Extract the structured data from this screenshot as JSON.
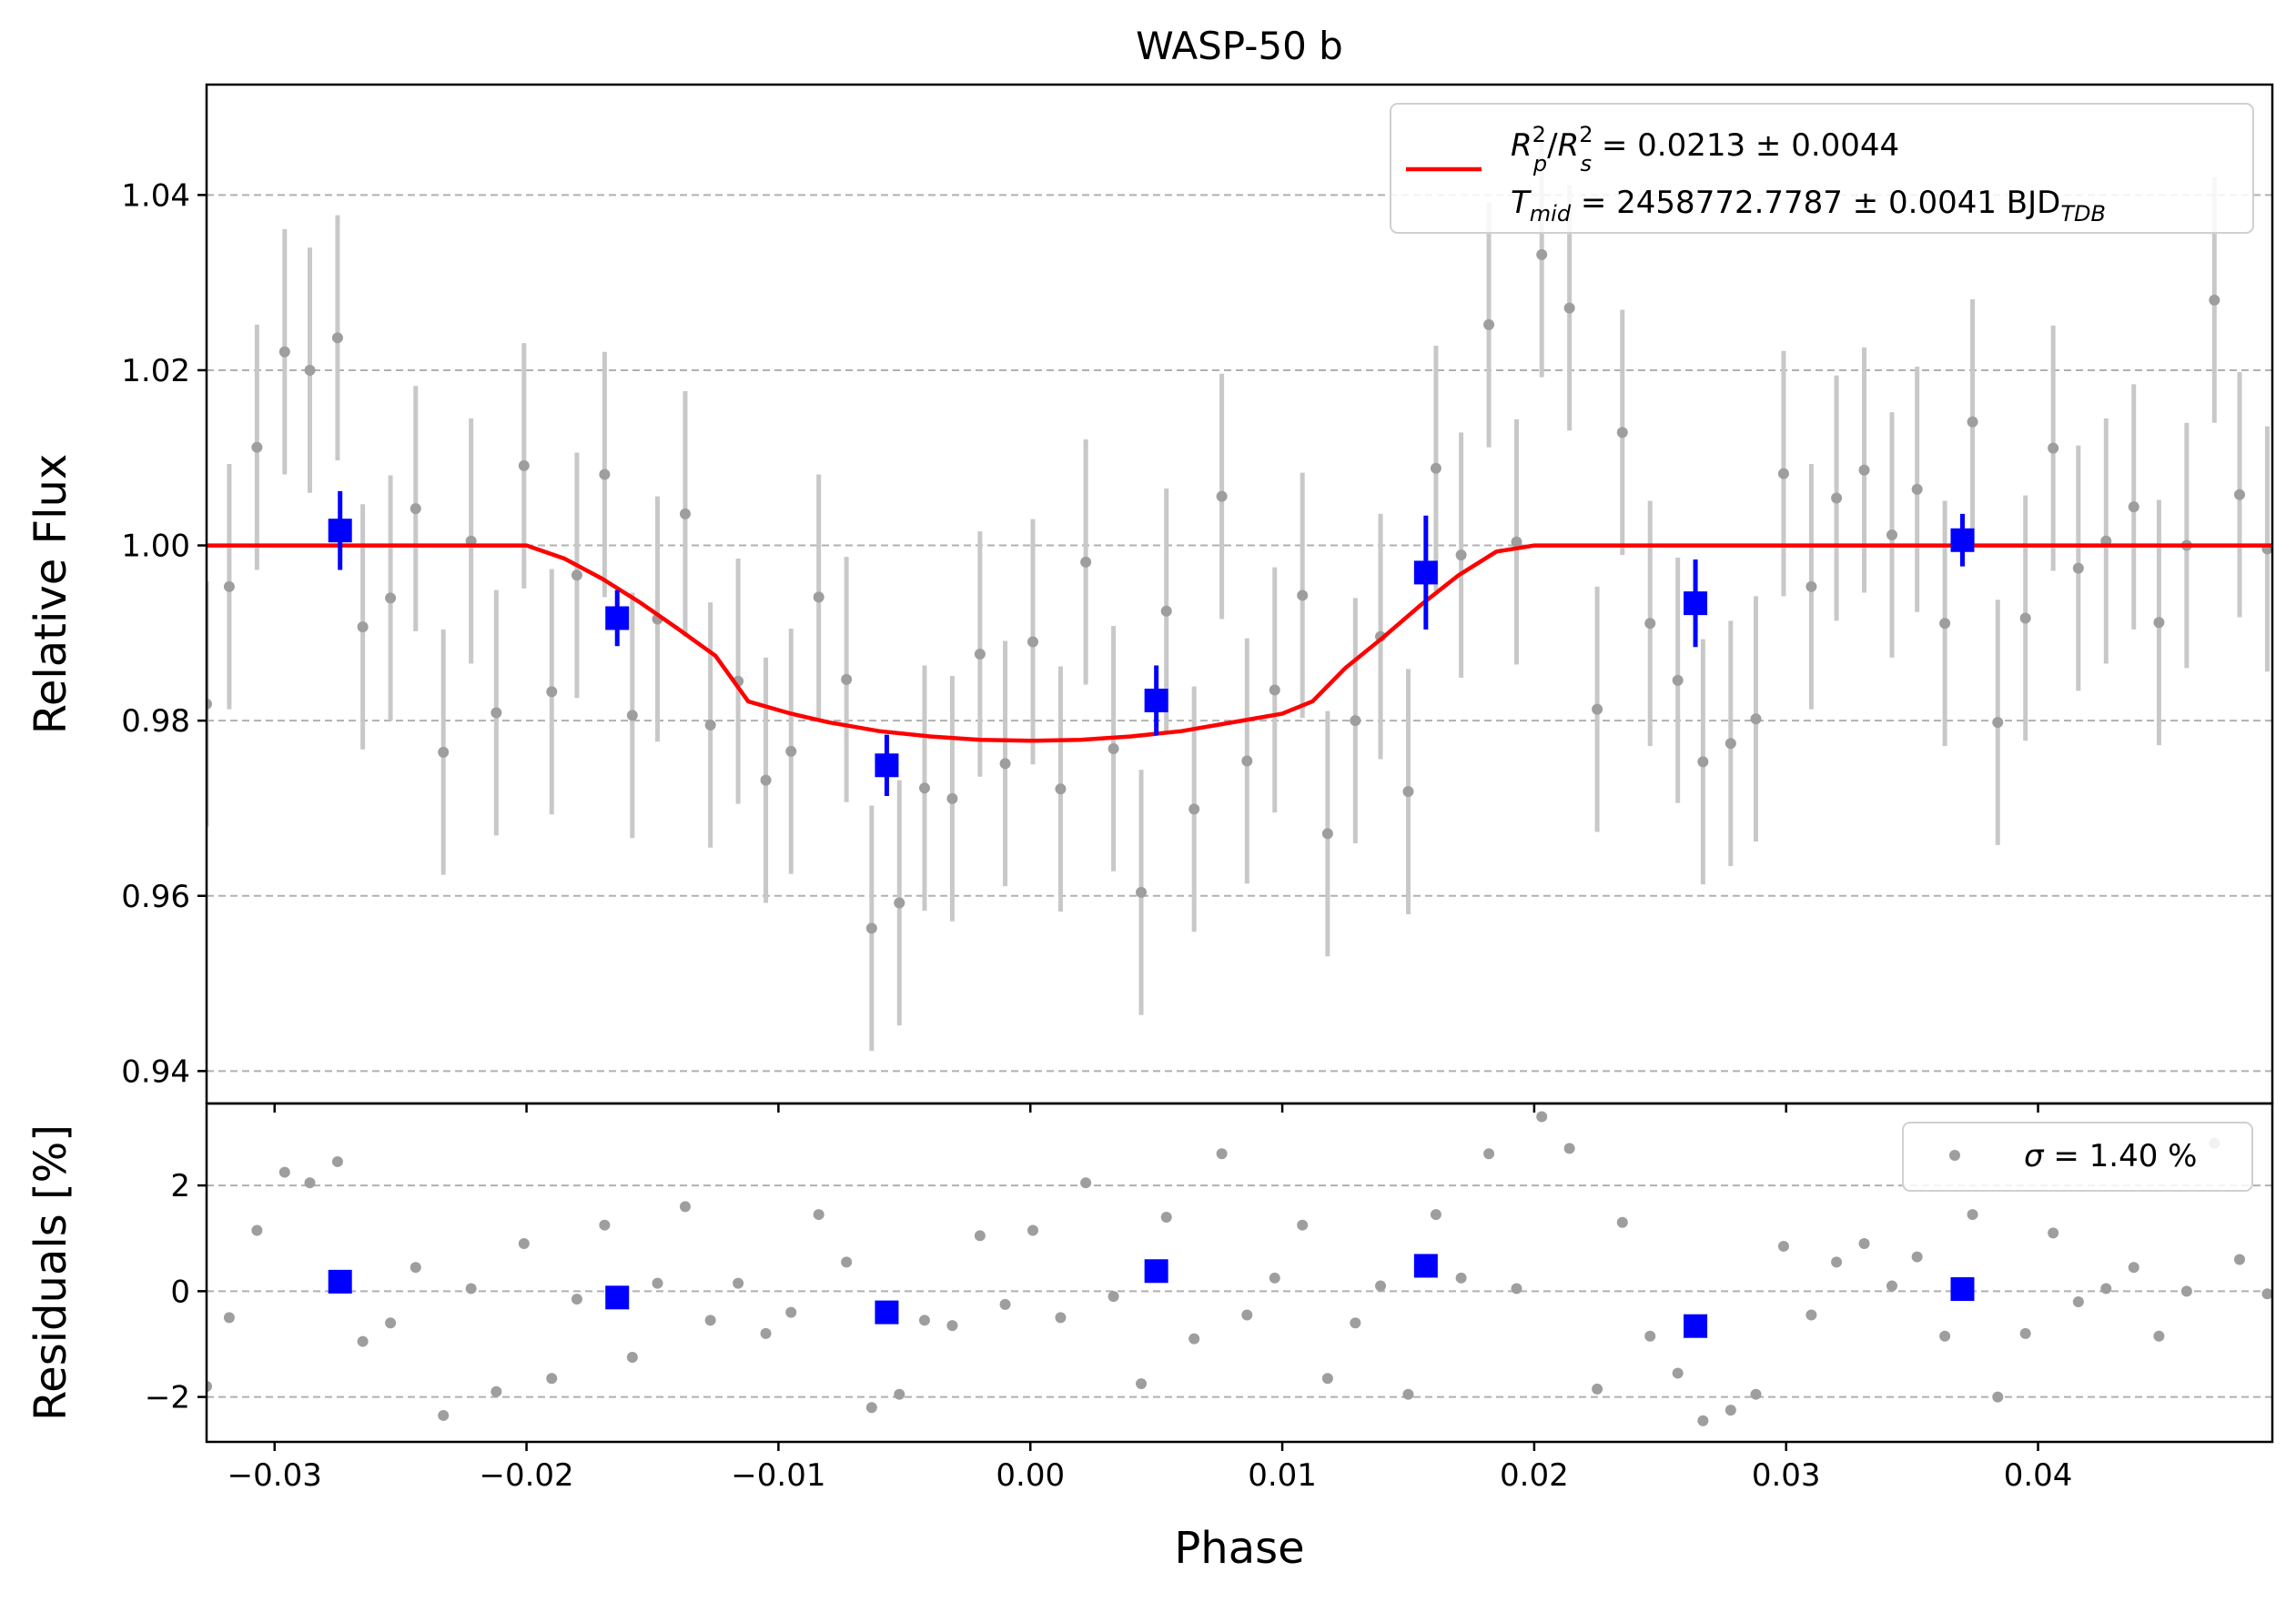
{
  "chart_data": {
    "type": "scatter",
    "title": "WASP-50 b",
    "xlabel": "Phase",
    "xlim": [
      -0.0327,
      0.0493
    ],
    "xticks": [
      -0.03,
      -0.02,
      -0.01,
      0.0,
      0.01,
      0.02,
      0.03,
      0.04
    ],
    "xtick_labels": [
      "−0.03",
      "−0.02",
      "−0.01",
      "0.00",
      "0.01",
      "0.02",
      "0.03",
      "0.04"
    ],
    "grid": "horizontal dashed",
    "colors": {
      "raw": "#9e9e9e",
      "errorbar": "#c8c8c8",
      "binned": "#0000ff",
      "model": "#ff0000"
    },
    "panels": [
      {
        "name": "flux",
        "ylabel": "Relative Flux",
        "ylim": [
          0.9363,
          1.0526
        ],
        "yticks": [
          0.94,
          0.96,
          0.98,
          1.0,
          1.02,
          1.04
        ],
        "ytick_labels": [
          "0.94",
          "0.96",
          "0.98",
          "1.00",
          "1.02",
          "1.04"
        ],
        "legend": {
          "placement": "top-right",
          "line1": {
            "r1": "R",
            "r1sup": "2",
            "r1sub": "p",
            "slash": "/",
            "r2": "R",
            "r2sup": "2",
            "r2sub": "s",
            "value": " = 0.0213 ± 0.0044"
          },
          "line2": {
            "t": "T",
            "tsub": "mid",
            "value": " = 2458772.7787 ± 0.0041 BJD",
            "unit_sub": "TDB"
          }
        },
        "model": {
          "x": [
            -0.0327,
            -0.02,
            -0.0185,
            -0.017,
            -0.0155,
            -0.014,
            -0.0125,
            -0.0112,
            -0.0095,
            -0.008,
            -0.006,
            -0.004,
            -0.002,
            0.0,
            0.002,
            0.004,
            0.006,
            0.008,
            0.01,
            0.0112,
            0.0125,
            0.014,
            0.0155,
            0.017,
            0.0185,
            0.02,
            0.0493
          ],
          "y": [
            1.0,
            1.0,
            0.9985,
            0.9962,
            0.9935,
            0.9905,
            0.9874,
            0.9822,
            0.9808,
            0.9798,
            0.9788,
            0.9782,
            0.9778,
            0.9777,
            0.9778,
            0.9782,
            0.9788,
            0.9798,
            0.9808,
            0.9822,
            0.986,
            0.9895,
            0.9932,
            0.9966,
            0.9993,
            1.0,
            1.0
          ]
        },
        "raw": {
          "x": [
            -0.0327,
            -0.0318,
            -0.0307,
            -0.0296,
            -0.0286,
            -0.0275,
            -0.0265,
            -0.0254,
            -0.0244,
            -0.0233,
            -0.0222,
            -0.0212,
            -0.0201,
            -0.019,
            -0.018,
            -0.0169,
            -0.0158,
            -0.0148,
            -0.0137,
            -0.0127,
            -0.0116,
            -0.0105,
            -0.0095,
            -0.0084,
            -0.0073,
            -0.0063,
            -0.0052,
            -0.0042,
            -0.0031,
            -0.002,
            -0.001,
            0.0001,
            0.0012,
            0.0022,
            0.0033,
            0.0044,
            0.0054,
            0.0065,
            0.0076,
            0.0086,
            0.0097,
            0.0108,
            0.0118,
            0.0129,
            0.0139,
            0.015,
            0.0161,
            0.0171,
            0.0182,
            0.0193,
            0.0203,
            0.0214,
            0.0225,
            0.0235,
            0.0246,
            0.0257,
            0.0267,
            0.0278,
            0.0288,
            0.0299,
            0.031,
            0.032,
            0.0331,
            0.0342,
            0.0352,
            0.0363,
            0.0374,
            0.0384,
            0.0395,
            0.0406,
            0.0416,
            0.0427,
            0.0438,
            0.0448,
            0.0459,
            0.047,
            0.048,
            0.0491
          ],
          "y": [
            0.9819,
            0.9953,
            1.0112,
            1.0221,
            1.02,
            1.0237,
            0.9907,
            0.994,
            1.0042,
            0.9764,
            1.0005,
            0.9809,
            1.0091,
            0.9833,
            0.9966,
            1.0081,
            0.9806,
            0.9916,
            1.0036,
            0.9795,
            0.9845,
            0.9732,
            0.9765,
            0.9941,
            0.9847,
            0.9563,
            0.9592,
            0.9723,
            0.9711,
            0.9876,
            0.9751,
            0.989,
            0.9722,
            0.9981,
            0.9768,
            0.9604,
            0.9925,
            0.9699,
            1.0056,
            0.9754,
            0.9835,
            0.9943,
            0.9671,
            0.98,
            0.9896,
            0.9719,
            1.0088,
            0.9989,
            1.0252,
            1.0004,
            1.0332,
            1.0271,
            0.9813,
            1.0129,
            0.9911,
            0.9846,
            0.9753,
            0.9774,
            0.9802,
            1.0082,
            0.9953,
            1.0054,
            1.0086,
            1.0012,
            1.0064,
            0.9911,
            1.0141,
            0.9798,
            0.9917,
            1.0111,
            0.9974,
            1.0005,
            1.0044,
            0.9912,
            1.0,
            1.028,
            1.0058,
            0.9996
          ],
          "err": 0.014
        },
        "binned": {
          "x": [
            -0.0274,
            -0.0164,
            -0.0057,
            0.005,
            0.0157,
            0.0264,
            0.037
          ],
          "y": [
            1.0017,
            0.9917,
            0.9749,
            0.9823,
            0.9969,
            0.9934,
            1.0006
          ],
          "err": [
            0.0045,
            0.0032,
            0.0035,
            0.004,
            0.0065,
            0.005,
            0.003
          ]
        }
      },
      {
        "name": "residuals",
        "ylabel": "Residuals [%]",
        "ylim": [
          -2.85,
          3.55
        ],
        "yticks": [
          -2,
          0,
          2
        ],
        "ytick_labels": [
          "−2",
          "0",
          "2"
        ],
        "legend": {
          "placement": "top-right",
          "sigma": "σ",
          "value": " = 1.40 %"
        },
        "raw": {
          "x": [
            -0.0327,
            -0.0318,
            -0.0307,
            -0.0296,
            -0.0286,
            -0.0275,
            -0.0265,
            -0.0254,
            -0.0244,
            -0.0233,
            -0.0222,
            -0.0212,
            -0.0201,
            -0.019,
            -0.018,
            -0.0169,
            -0.0158,
            -0.0148,
            -0.0137,
            -0.0127,
            -0.0116,
            -0.0105,
            -0.0095,
            -0.0084,
            -0.0073,
            -0.0063,
            -0.0052,
            -0.0042,
            -0.0031,
            -0.002,
            -0.001,
            0.0001,
            0.0012,
            0.0022,
            0.0033,
            0.0044,
            0.0054,
            0.0065,
            0.0076,
            0.0086,
            0.0097,
            0.0108,
            0.0118,
            0.0129,
            0.0139,
            0.015,
            0.0161,
            0.0171,
            0.0182,
            0.0193,
            0.0203,
            0.0214,
            0.0225,
            0.0235,
            0.0246,
            0.0257,
            0.0267,
            0.0278,
            0.0288,
            0.0299,
            0.031,
            0.032,
            0.0331,
            0.0342,
            0.0352,
            0.0363,
            0.0374,
            0.0384,
            0.0395,
            0.0406,
            0.0416,
            0.0427,
            0.0438,
            0.0448,
            0.0459,
            0.047,
            0.048,
            0.0491
          ],
          "y": [
            -1.8,
            -0.5,
            1.15,
            2.25,
            2.05,
            2.45,
            -0.95,
            -0.6,
            0.45,
            -2.35,
            0.05,
            -1.9,
            0.9,
            -1.65,
            -0.15,
            1.25,
            -1.25,
            0.15,
            1.6,
            -0.55,
            0.15,
            -0.8,
            -0.4,
            1.45,
            0.55,
            -2.2,
            -1.95,
            -0.55,
            -0.65,
            1.05,
            -0.25,
            1.15,
            -0.5,
            2.05,
            -0.1,
            -1.75,
            1.4,
            -0.9,
            2.6,
            -0.45,
            0.25,
            1.25,
            -1.65,
            -0.6,
            0.1,
            -1.95,
            1.45,
            0.25,
            2.6,
            0.05,
            3.3,
            2.7,
            -1.85,
            1.3,
            -0.85,
            -1.55,
            -2.45,
            -2.25,
            -1.95,
            0.85,
            -0.45,
            0.55,
            0.9,
            0.1,
            0.65,
            -0.85,
            1.45,
            -2.0,
            -0.8,
            1.1,
            -0.2,
            0.05,
            0.45,
            -0.85,
            0.0,
            2.8,
            0.6,
            -0.05
          ]
        },
        "binned": {
          "x": [
            -0.0274,
            -0.0164,
            -0.0057,
            0.005,
            0.0157,
            0.0264,
            0.037
          ],
          "y": [
            0.18,
            -0.12,
            -0.4,
            0.38,
            0.48,
            -0.66,
            0.04
          ]
        }
      }
    ]
  }
}
